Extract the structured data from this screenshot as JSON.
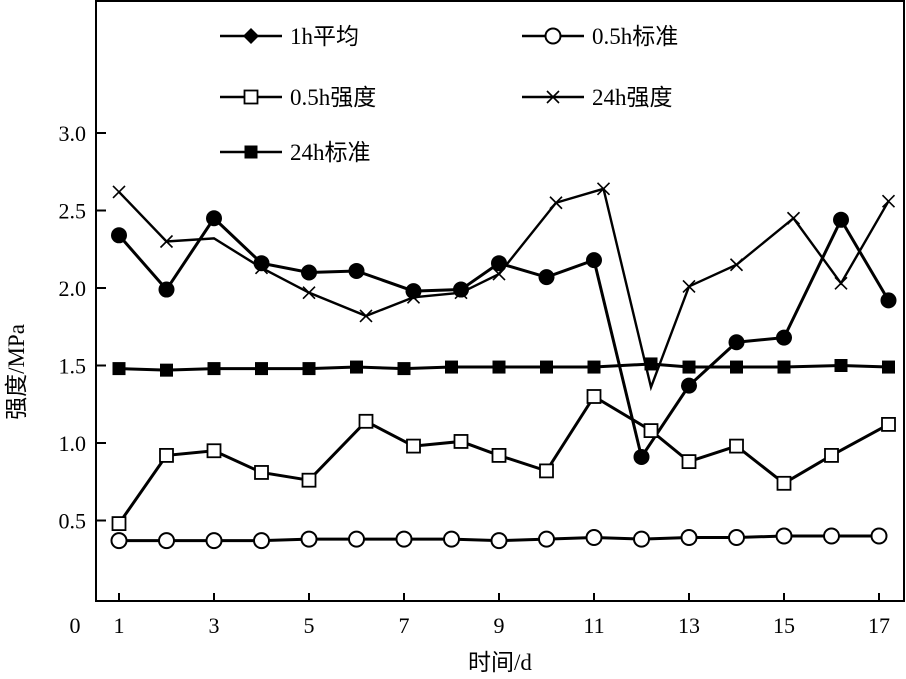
{
  "chart_data": {
    "type": "line",
    "title": "",
    "xlabel": "时间/d",
    "ylabel": "强度/MPa",
    "xlim": [
      0.5,
      17.5
    ],
    "ylim": [
      0,
      3.86
    ],
    "x_ticks": [
      "0",
      "1",
      "3",
      "5",
      "7",
      "9",
      "11",
      "13",
      "15",
      "17"
    ],
    "y_ticks": [
      "0.5",
      "1.0",
      "1.5",
      "2.0",
      "2.5",
      "3.0"
    ],
    "legend_position": "top",
    "series": [
      {
        "name": "1h平均",
        "marker": "filled-circle",
        "legend_marker": "filled-diamond",
        "x": [
          1,
          2,
          3,
          4,
          5,
          6,
          7.2,
          8.2,
          9,
          10,
          11,
          12,
          13,
          14,
          15,
          16.2,
          17.2
        ],
        "values": [
          2.34,
          1.99,
          2.45,
          2.16,
          2.1,
          2.11,
          1.98,
          1.99,
          2.16,
          2.07,
          2.18,
          0.91,
          1.37,
          1.65,
          1.68,
          2.44,
          1.92
        ]
      },
      {
        "name": "0.5h标准",
        "marker": "open-circle",
        "x": [
          1,
          2,
          3,
          4,
          5,
          6,
          7,
          8,
          9,
          10,
          11,
          12,
          13,
          14,
          15,
          16,
          17
        ],
        "values": [
          0.37,
          0.37,
          0.37,
          0.37,
          0.38,
          0.38,
          0.38,
          0.38,
          0.37,
          0.38,
          0.39,
          0.38,
          0.39,
          0.39,
          0.4,
          0.4,
          0.4
        ]
      },
      {
        "name": "0.5h强度",
        "marker": "open-square",
        "x": [
          1,
          2,
          3,
          4,
          5,
          6.2,
          7.2,
          8.2,
          9,
          10,
          11,
          12.2,
          13,
          14,
          15,
          16,
          17.2
        ],
        "values": [
          0.48,
          0.92,
          0.95,
          0.81,
          0.76,
          1.14,
          0.98,
          1.01,
          0.92,
          0.82,
          1.3,
          1.08,
          0.88,
          0.98,
          0.74,
          0.92,
          1.12
        ]
      },
      {
        "name": "24h强度",
        "marker": "cross",
        "x": [
          1,
          2,
          3,
          4,
          5,
          6.2,
          7.2,
          8.2,
          9,
          10.2,
          11.2,
          12.2,
          13,
          14,
          15.2,
          16.2,
          17.2
        ],
        "values": [
          2.62,
          2.3,
          2.32,
          2.13,
          1.97,
          1.82,
          1.94,
          1.97,
          2.09,
          2.55,
          2.64,
          1.36,
          2.01,
          2.15,
          2.45,
          2.03,
          2.56
        ],
        "hidden_markers": [
          3,
          12.2
        ]
      },
      {
        "name": "24h标准",
        "marker": "filled-square",
        "x": [
          1,
          2,
          3,
          4,
          5,
          6,
          7,
          8,
          9,
          10,
          11,
          12.2,
          13,
          14,
          15,
          16.2,
          17.2
        ],
        "values": [
          1.48,
          1.47,
          1.48,
          1.48,
          1.48,
          1.49,
          1.48,
          1.49,
          1.49,
          1.49,
          1.49,
          1.51,
          1.49,
          1.49,
          1.49,
          1.5,
          1.49
        ]
      }
    ]
  }
}
